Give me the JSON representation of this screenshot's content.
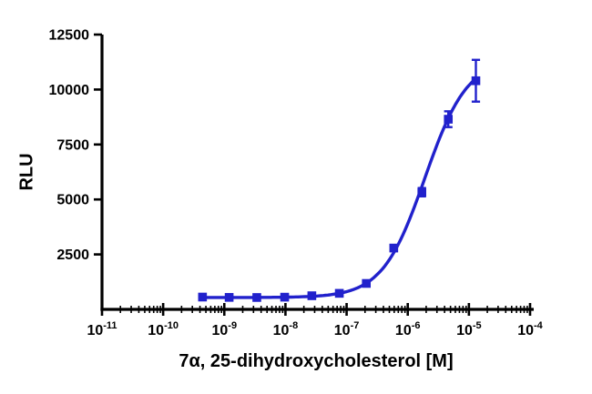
{
  "chart_data": {
    "type": "line",
    "title": "",
    "xlabel": "7α, 25-dihydroxycholesterol [M]",
    "ylabel": "RLU",
    "x_scale": "log10",
    "xlim_exponents": [
      -11,
      -4
    ],
    "x_ticks_exponents": [
      -11,
      -10,
      -9,
      -8,
      -7,
      -6,
      -5,
      -4
    ],
    "ylim": [
      0,
      12500
    ],
    "y_ticks": [
      2500,
      5000,
      7500,
      10000,
      12500
    ],
    "grid": false,
    "legend": "none",
    "series": [
      {
        "name": "7α,25-dihydroxycholesterol",
        "color": "#2121cc",
        "marker": "square",
        "x": [
          4.4e-10,
          1.2e-09,
          3.4e-09,
          9.7e-09,
          2.7e-08,
          7.6e-08,
          2.1e-07,
          5.9e-07,
          1.7e-06,
          4.6e-06,
          1.3e-05
        ],
        "y": [
          560,
          545,
          540,
          555,
          620,
          730,
          1180,
          2790,
          5330,
          8650,
          10400
        ],
        "y_err": [
          50,
          45,
          45,
          45,
          50,
          55,
          70,
          110,
          190,
          360,
          950
        ]
      }
    ],
    "fit": {
      "model": "4PL",
      "bottom": 540,
      "top": 11400,
      "ec50": 1.9e-06,
      "hill": 1.25
    }
  }
}
